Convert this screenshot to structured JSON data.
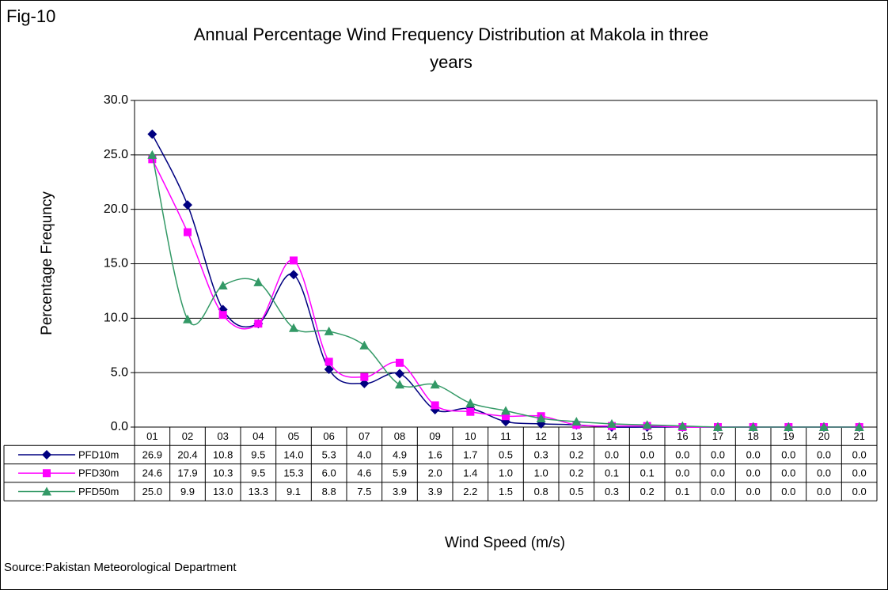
{
  "chart_data": {
    "type": "line",
    "figure_label": "Fig-10",
    "title": "Annual Percentage Wind Frequency Distribution at  Makola in three years",
    "x_label": "Wind Speed (m/s)",
    "y_label": "Percentage Frequncy",
    "source": "Source:Pakistan Meteorological Department",
    "categories": [
      "01",
      "02",
      "03",
      "04",
      "05",
      "06",
      "07",
      "08",
      "09",
      "10",
      "11",
      "12",
      "13",
      "14",
      "15",
      "16",
      "17",
      "18",
      "19",
      "20",
      "21"
    ],
    "series": [
      {
        "name": "PFD10m",
        "color": "#000080",
        "marker": "diamond",
        "values": [
          26.9,
          20.4,
          10.8,
          9.5,
          14.0,
          5.3,
          4.0,
          4.9,
          1.6,
          1.7,
          0.5,
          0.3,
          0.2,
          0.0,
          0.0,
          0.0,
          0.0,
          0.0,
          0.0,
          0.0,
          0.0
        ],
        "value_labels": [
          "26.9",
          "20.4",
          "10.8",
          "9.5",
          "14.0",
          "5.3",
          "4.0",
          "4.9",
          "1.6",
          "1.7",
          "0.5",
          "0.3",
          "0.2",
          "0.0",
          "0.0",
          "0.0",
          "0.0",
          "0.0",
          "0.0",
          "0.0",
          "0.0"
        ]
      },
      {
        "name": "PFD30m",
        "color": "#ff00ff",
        "marker": "square",
        "values": [
          24.6,
          17.9,
          10.3,
          9.5,
          15.3,
          6.0,
          4.6,
          5.9,
          2.0,
          1.4,
          1.0,
          1.0,
          0.2,
          0.1,
          0.1,
          0.0,
          0.0,
          0.0,
          0.0,
          0.0,
          0.0
        ],
        "value_labels": [
          "24.6",
          "17.9",
          "10.3",
          "9.5",
          "15.3",
          "6.0",
          "4.6",
          "5.9",
          "2.0",
          "1.4",
          "1.0",
          "1.0",
          "0.2",
          "0.1",
          "0.1",
          "0.0",
          "0.0",
          "0.0",
          "0.0",
          "0.0",
          "0.0"
        ]
      },
      {
        "name": "PFD50m",
        "color": "#339966",
        "marker": "triangle",
        "values": [
          25.0,
          9.9,
          13.0,
          13.3,
          9.1,
          8.8,
          7.5,
          3.9,
          3.9,
          2.2,
          1.5,
          0.8,
          0.5,
          0.3,
          0.2,
          0.1,
          0.0,
          0.0,
          0.0,
          0.0,
          0.0
        ],
        "value_labels": [
          "25.0",
          "9.9",
          "13.0",
          "13.3",
          "9.1",
          "8.8",
          "7.5",
          "3.9",
          "3.9",
          "2.2",
          "1.5",
          "0.8",
          "0.5",
          "0.3",
          "0.2",
          "0.1",
          "0.0",
          "0.0",
          "0.0",
          "0.0",
          "0.0"
        ]
      }
    ],
    "ylim": [
      0,
      30
    ],
    "yticks": [
      {
        "value": 0,
        "label": "0.0"
      },
      {
        "value": 5,
        "label": "5.0"
      },
      {
        "value": 10,
        "label": "10.0"
      },
      {
        "value": 15,
        "label": "15.0"
      },
      {
        "value": 20,
        "label": "20.0"
      },
      {
        "value": 25,
        "label": "25.0"
      },
      {
        "value": 30,
        "label": "30.0"
      }
    ],
    "grid": true,
    "smooth": true
  }
}
